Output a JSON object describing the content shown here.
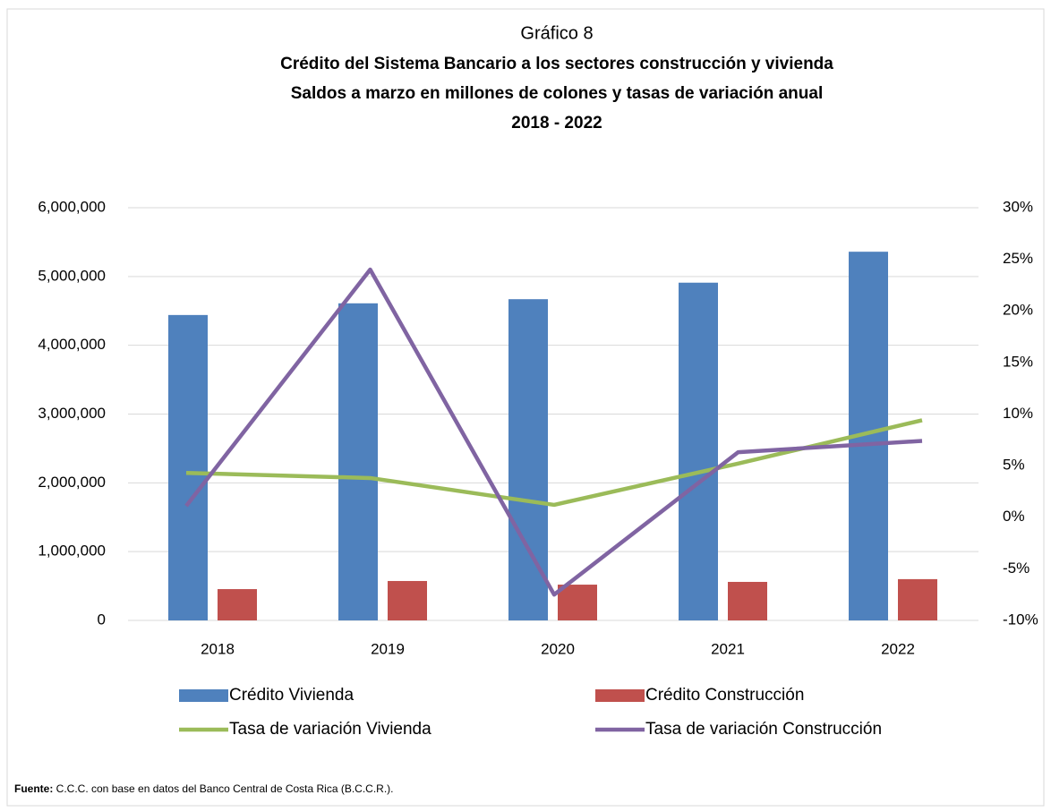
{
  "chart_data": {
    "type": "bar-line",
    "title": "Gráfico 8",
    "subtitle": [
      "Crédito del Sistema Bancario a los sectores construcción y vivienda",
      "Saldos a marzo en millones de colones y tasas de variación anual",
      "2018 - 2022"
    ],
    "categories": [
      "2018",
      "2019",
      "2020",
      "2021",
      "2022"
    ],
    "series": [
      {
        "name": "Crédito Vivienda",
        "kind": "bar",
        "color": "#4f81bd",
        "values": [
          4440000,
          4610000,
          4670000,
          4910000,
          5360000
        ]
      },
      {
        "name": "Crédito Construcción",
        "kind": "bar",
        "color": "#c0504d",
        "values": [
          455000,
          573000,
          520000,
          560000,
          600000
        ]
      },
      {
        "name": "Tasa de variación Vivienda",
        "kind": "line",
        "axis": "y2",
        "color": "#9bbb59",
        "values": [
          4.3,
          3.8,
          1.2,
          5.2,
          9.4
        ]
      },
      {
        "name": "Tasa de variación Construcción",
        "kind": "line",
        "axis": "y2",
        "color": "#8064a2",
        "values": [
          1.1,
          24,
          -7.5,
          6.3,
          7.4
        ]
      }
    ],
    "ylim": [
      0,
      6000000
    ],
    "yticks": [
      0,
      {
        "value": 1000000,
        "label": "1,000,000"
      },
      {
        "value": 2000000,
        "label": "2,000,000"
      },
      {
        "value": 3000000,
        "label": "3,000,000"
      },
      {
        "value": 4000000,
        "label": "4,000,000"
      },
      {
        "value": 5000000,
        "label": "5,000,000"
      },
      {
        "value": 6000000,
        "label": "6,000,000"
      }
    ],
    "y2lim": [
      -10,
      30
    ],
    "y2ticks": [
      {
        "value": -10,
        "label": "-10%"
      },
      {
        "value": -5,
        "label": "-5%"
      },
      {
        "value": 0,
        "label": "0%"
      },
      {
        "value": 5,
        "label": "5%"
      },
      {
        "value": 10,
        "label": "10%"
      },
      {
        "value": 15,
        "label": "15%"
      },
      {
        "value": 20,
        "label": "20%"
      },
      {
        "value": 25,
        "label": "25%"
      },
      {
        "value": 30,
        "label": "30%"
      }
    ],
    "grid": true,
    "legend": "bottom",
    "source_label": "Fuente:",
    "source": " C.C.C. con base en datos del Banco Central de Costa Rica (B.C.C.R.)."
  }
}
